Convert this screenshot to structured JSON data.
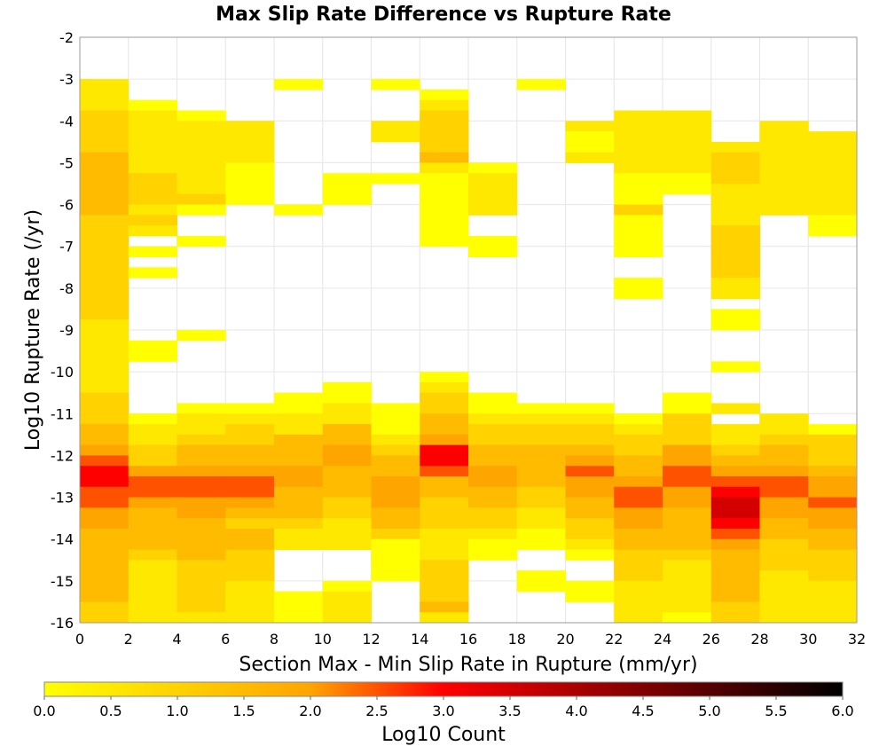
{
  "chart_data": {
    "type": "heatmap",
    "title": "Max Slip Rate Difference vs Rupture Rate",
    "xlabel": "Section Max - Min Slip Rate in Rupture (mm/yr)",
    "ylabel": "Log10 Rupture Rate (/yr)",
    "xlim": [
      0,
      32
    ],
    "ylim": [
      -16,
      -2
    ],
    "x_ticks": [
      "0",
      "2",
      "4",
      "6",
      "8",
      "10",
      "12",
      "14",
      "16",
      "18",
      "20",
      "22",
      "24",
      "26",
      "28",
      "30",
      "32"
    ],
    "y_ticks": [
      "-2",
      "-3",
      "-4",
      "-5",
      "-6",
      "-7",
      "-8",
      "-9",
      "-10",
      "-11",
      "-12",
      "-13",
      "-14",
      "-15",
      "-16"
    ],
    "x_bin_width": 2,
    "y_bin_width": 0.25,
    "y_bins_top": -3,
    "grid": true,
    "colorbar": {
      "label": "Log10 Count",
      "range": [
        0,
        6
      ],
      "ticks": [
        "0.0",
        "0.5",
        "1.0",
        "1.5",
        "2.0",
        "2.5",
        "3.0",
        "3.5",
        "4.0",
        "4.5",
        "5.0",
        "5.5",
        "6.0"
      ],
      "colors": [
        "#ffff00",
        "#ffa500",
        "#ff0000",
        "#000000"
      ]
    },
    "columns": [
      {
        "x": "0-2",
        "values": "BBBCCCCDDDDDDCCCCCCCCCCBBBBBBBCCCDDEFGGFFEEDDDDDDDCCCCCCCL"
      },
      {
        "x": "2-4",
        "values": "..ABBBBBBCCCBCB.A.A......AA.....ABBCCEFFEDDDDCBBBBBBCCBBBL"
      },
      {
        "x": "4-6",
        "values": "...ABBBBBBBCA..A........A......ABBCDDEFFEEDDDDCCCCCBBBBCCL"
      },
      {
        "x": "6-8",
        "values": "....BBBBAAAA...................ABCCDDEFFEDCDDCCCBBBBBBA.L"
      },
      {
        "x": "8-10",
        "values": "A...........A.................AABBDDDEEDDDCBB....AAAA..L"
      },
      {
        "x": "10-12",
        "values": ".........AAA.................AABBDDEEDDDCCBBB...ABBB.AAL"
      },
      {
        "x": "12-14",
        "values": "A...BB...A.....................AAABCDDEEEDDCAAAA.....AA.L"
      },
      {
        "x": "14-16",
        "values": ".ABCCCCDBAAAAAAA............ABCCDDEGGFDDCCCBBBCCCCDBAAAL"
      },
      {
        "x": "16-18",
        "values": "........ABBBB..AA.............AABCCDDEEDDCCBAA...........M"
      },
      {
        "x": "18-20",
        "values": "A..............................ABCCDDDDCCBBAA..AA.........M"
      },
      {
        "x": "20-22",
        "values": "....BAAB.......................ABCCDEFEEDDCCBA..AA........L"
      },
      {
        "x": "22-24",
        "values": "...BBBBBBAAACAAAA..AA...........ABCCDDEFFEEDDCCCBBBBBAABL"
      },
      {
        "x": "24-26",
        "values": "...BBBBBBAA...................AACCCEEFFEEDDDDCBBBBBAA...L"
      },
      {
        "x": "26-28",
        "values": "......BCCCBBBBCCCCCBB.AA...A...B.BBCDEFGHHGFEDDDDDCCCCCCL"
      },
      {
        "x": "28-30",
        "values": "....BBBBBBBBB...................BBCDDEFFEEDDCCCBBBBBB..L"
      },
      {
        "x": "30-32",
        "values": ".....BBBBBBBBAA..................ACCCDEEFEEDDCCCBBBBBBBL"
      }
    ]
  }
}
